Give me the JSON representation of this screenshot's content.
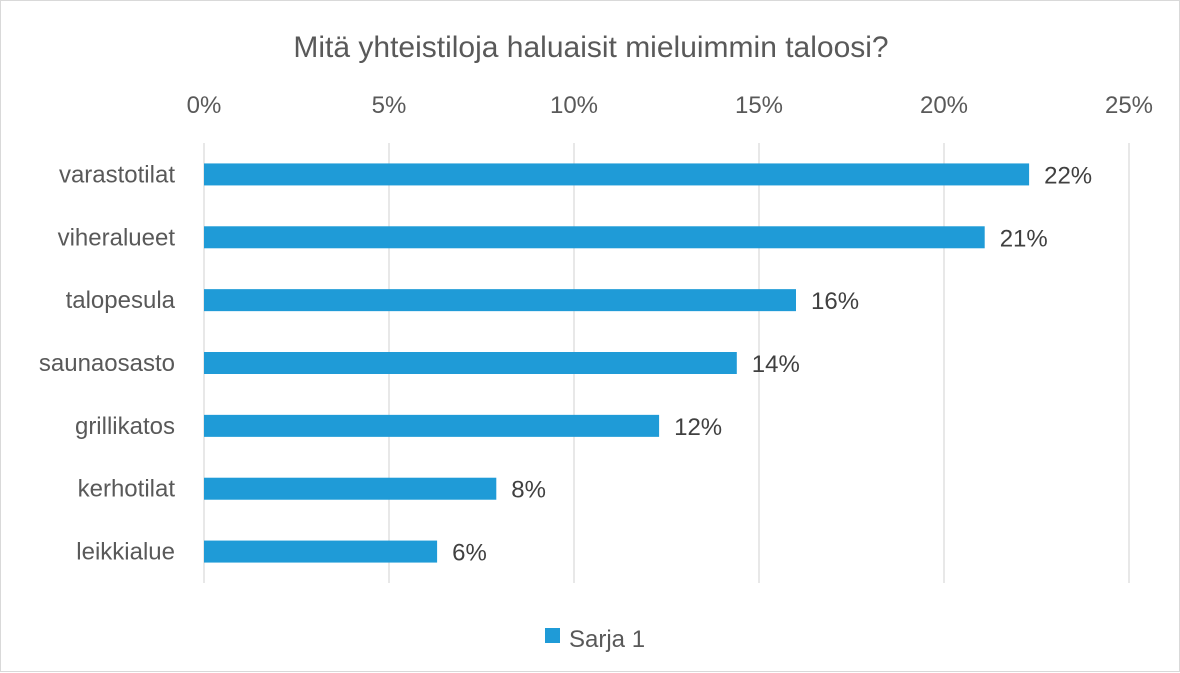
{
  "chart_data": {
    "type": "bar",
    "orientation": "horizontal",
    "title": "Mitä yhteistiloja haluaisit mieluimmin taloosi?",
    "xlabel": "",
    "ylabel": "",
    "xlim": [
      0,
      25
    ],
    "x_ticks": [
      "0%",
      "5%",
      "10%",
      "15%",
      "20%",
      "25%"
    ],
    "x_tick_values": [
      0,
      5,
      10,
      15,
      20,
      25
    ],
    "x_axis_position": "top",
    "grid": true,
    "categories": [
      "varastotilat",
      "viheralueet",
      "talopesula",
      "saunaosasto",
      "grillikatos",
      "kerhotilat",
      "leikkialue"
    ],
    "series": [
      {
        "name": "Sarja 1",
        "color": "#1f9bd7",
        "values": [
          22.3,
          21.1,
          16.0,
          14.4,
          12.3,
          7.9,
          6.3
        ],
        "data_labels": [
          "22%",
          "21%",
          "16%",
          "14%",
          "12%",
          "8%",
          "6%"
        ]
      }
    ],
    "legend": {
      "position": "bottom",
      "entries": [
        "Sarja 1"
      ]
    },
    "colors": {
      "grid": "#d9d9d9",
      "bar": "#1f9bd7"
    }
  }
}
